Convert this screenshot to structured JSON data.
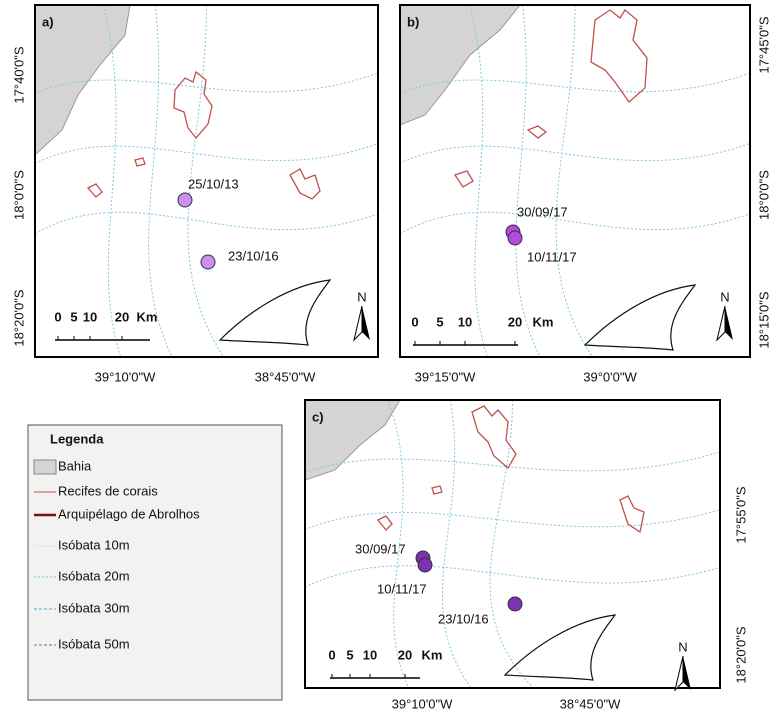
{
  "panels": [
    {
      "label": "a)",
      "lon_labels": [
        "39°10'0\"W",
        "38°45'0\"W"
      ],
      "lat_labels": [
        "17°40'0\"S",
        "18°0'0\"S",
        "18°20'0\"S"
      ],
      "points": [
        "25/10/13",
        "23/10/16"
      ],
      "scale": [
        "0",
        "5",
        "10",
        "20",
        "Km"
      ],
      "north": "N"
    },
    {
      "label": "b)",
      "lon_labels": [
        "39°15'0\"W",
        "39°0'0\"W"
      ],
      "lat_labels": [
        "17°45'0\"S",
        "18°0'0\"S",
        "18°15'0\"S"
      ],
      "points": [
        "30/09/17",
        "10/11/17"
      ],
      "scale": [
        "0",
        "5",
        "10",
        "20",
        "Km"
      ],
      "north": "N"
    },
    {
      "label": "c)",
      "lon_labels": [
        "39°10'0\"W",
        "38°45'0\"W"
      ],
      "lat_labels": [
        "17°55'0\"S",
        "18°20'0\"S"
      ],
      "points": [
        "30/09/17",
        "10/11/17",
        "23/10/16"
      ],
      "scale": [
        "0",
        "5",
        "10",
        "20",
        "Km"
      ],
      "north": "N"
    }
  ],
  "legend": {
    "title": "Legenda",
    "items": [
      "Bahia",
      "Recifes de corais",
      "Arquipélago de Abrolhos",
      "Isóbata 10m",
      "Isóbata 20m",
      "Isóbata 30m",
      "Isóbata 50m"
    ]
  }
}
